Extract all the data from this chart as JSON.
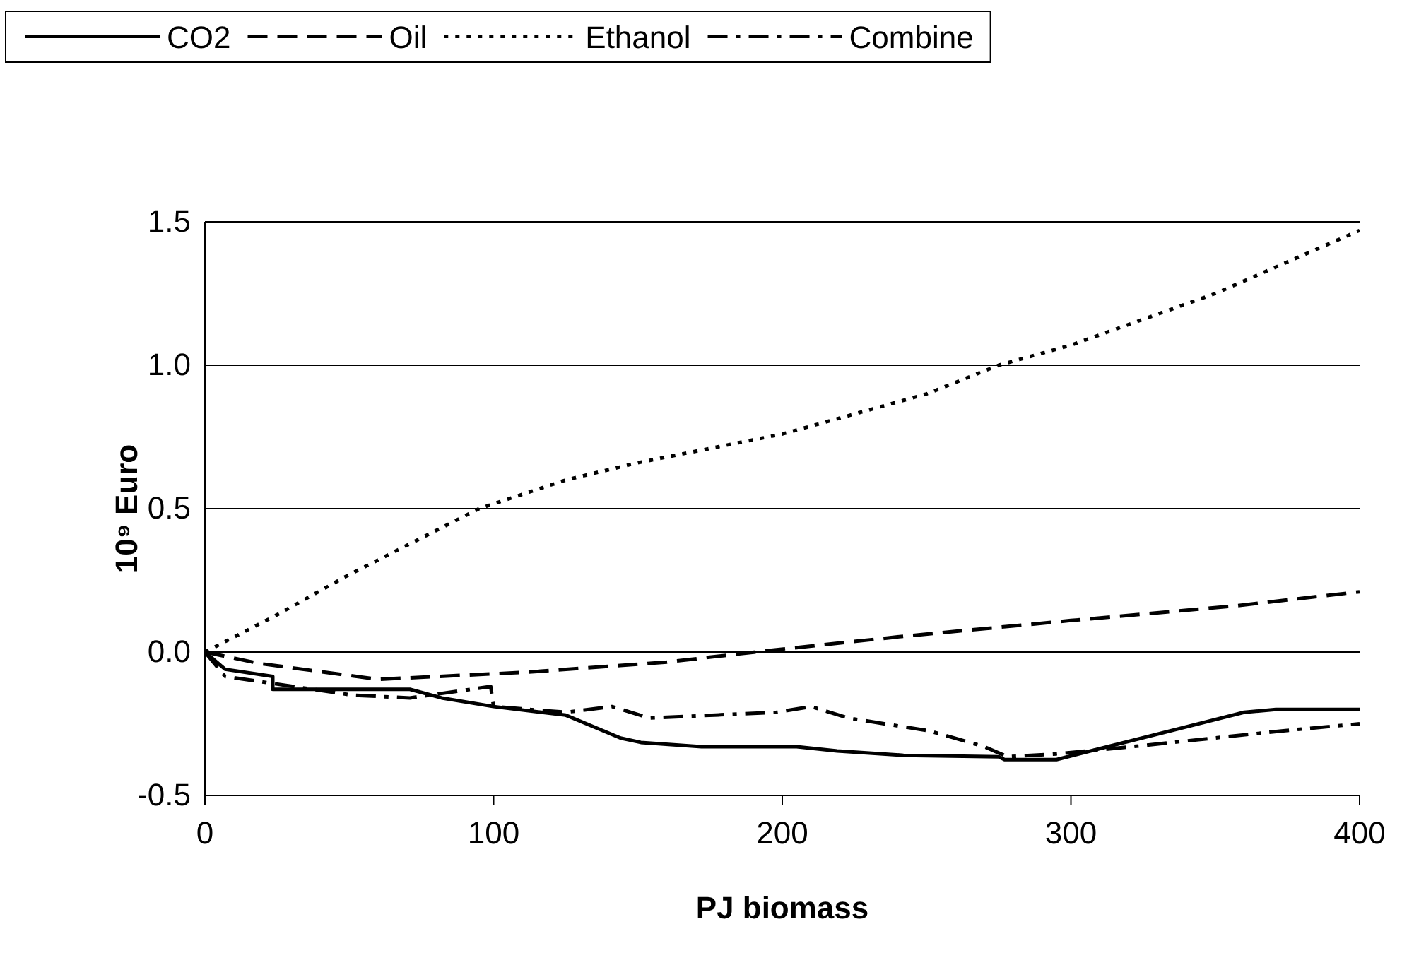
{
  "chart_data": {
    "type": "line",
    "xlabel": "PJ biomass",
    "ylabel": "10⁹ Euro",
    "xlim": [
      0,
      400
    ],
    "xticks": [
      0,
      100,
      200,
      300,
      400
    ],
    "ylim": [
      -0.5,
      1.5
    ],
    "yticks": [
      {
        "value": -0.5,
        "label": "-0.5"
      },
      {
        "value": 0,
        "label": "0.0"
      },
      0.5,
      {
        "value": 1,
        "label": "1.0"
      },
      1.5
    ],
    "grid": "y",
    "legend": "top",
    "marker": "none",
    "series": [
      {
        "name": "CO2",
        "color": "#000000",
        "line_style": "solid",
        "x": [
          0,
          7,
          23.5,
          23.5,
          71,
          82,
          100,
          125,
          144,
          151,
          172,
          205,
          219,
          242,
          275,
          277,
          295,
          360,
          371,
          400
        ],
        "values": [
          0,
          -0.06,
          -0.085,
          -0.13,
          -0.13,
          -0.16,
          -0.19,
          -0.22,
          -0.3,
          -0.315,
          -0.33,
          -0.33,
          -0.345,
          -0.36,
          -0.365,
          -0.375,
          -0.375,
          -0.21,
          -0.2,
          -0.2
        ]
      },
      {
        "name": "Oil",
        "color": "#000000",
        "line_style": "dashed",
        "x": [
          0,
          19,
          60,
          112,
          160,
          195,
          242,
          300,
          356,
          400
        ],
        "values": [
          0,
          -0.04,
          -0.095,
          -0.07,
          -0.035,
          0.005,
          0.055,
          0.11,
          0.16,
          0.21
        ]
      },
      {
        "name": "Ethanol",
        "color": "#000000",
        "line_style": "dotted",
        "x": [
          0,
          25,
          50,
          95,
          125,
          150,
          200,
          250,
          275,
          300,
          350,
          400
        ],
        "values": [
          0,
          0.13,
          0.27,
          0.5,
          0.6,
          0.66,
          0.76,
          0.9,
          1.0,
          1.07,
          1.25,
          1.47
        ]
      },
      {
        "name": "Combine",
        "color": "#000000",
        "line_style": "dashdot",
        "x": [
          0,
          7,
          51,
          71,
          99,
          100,
          125,
          141,
          154,
          198,
          210,
          223,
          251,
          270,
          278,
          295,
          321,
          373,
          400
        ],
        "values": [
          0,
          -0.085,
          -0.15,
          -0.16,
          -0.12,
          -0.19,
          -0.21,
          -0.19,
          -0.23,
          -0.21,
          -0.19,
          -0.23,
          -0.275,
          -0.33,
          -0.365,
          -0.355,
          -0.33,
          -0.275,
          -0.25
        ]
      }
    ]
  }
}
